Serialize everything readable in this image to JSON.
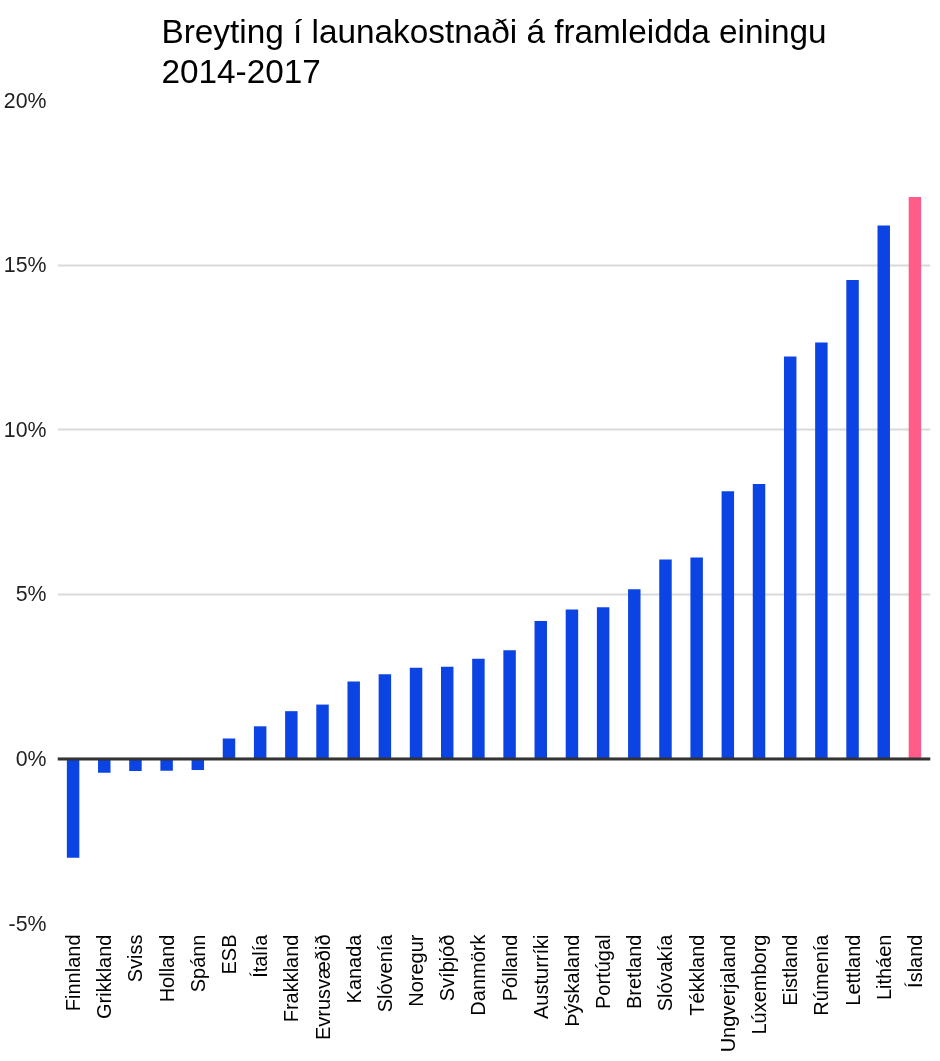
{
  "chart_data": {
    "type": "bar",
    "title": "Breyting í launakostnaði á framleidda einingu\n2014-2017",
    "categories": [
      "Finnland",
      "Grikkland",
      "Sviss",
      "Holland",
      "Spánn",
      "ESB",
      "Ítalía",
      "Frakkland",
      "Evrusvæðið",
      "Kanada",
      "Slóvenía",
      "Noregur",
      "Svíþjóð",
      "Danmörk",
      "Pólland",
      "Austurríki",
      "Þýskaland",
      "Portúgal",
      "Bretland",
      "Slóvakía",
      "Tékkland",
      "Ungverjaland",
      "Lúxemborg",
      "Eistland",
      "Rúmenía",
      "Lettland",
      "Litháen",
      "Ísland"
    ],
    "values": [
      -3.0,
      -0.42,
      -0.37,
      -0.36,
      -0.34,
      0.62,
      0.99,
      1.45,
      1.65,
      2.35,
      2.57,
      2.77,
      2.8,
      3.04,
      3.3,
      4.19,
      4.54,
      4.61,
      5.15,
      6.06,
      6.12,
      8.13,
      8.35,
      12.22,
      12.65,
      14.55,
      16.2,
      17.07
    ],
    "colors": [
      "#0b44e3",
      "#0b44e3",
      "#0b44e3",
      "#0b44e3",
      "#0b44e3",
      "#0b44e3",
      "#0b44e3",
      "#0b44e3",
      "#0b44e3",
      "#0b44e3",
      "#0b44e3",
      "#0b44e3",
      "#0b44e3",
      "#0b44e3",
      "#0b44e3",
      "#0b44e3",
      "#0b44e3",
      "#0b44e3",
      "#0b44e3",
      "#0b44e3",
      "#0b44e3",
      "#0b44e3",
      "#0b44e3",
      "#0b44e3",
      "#0b44e3",
      "#0b44e3",
      "#0b44e3",
      "#fe5c8b"
    ],
    "ylim": [
      -5,
      20
    ],
    "yticks": [
      {
        "value": -5,
        "label": "-5%"
      },
      {
        "value": 0,
        "label": "0%"
      },
      {
        "value": 5,
        "label": "5%"
      },
      {
        "value": 10,
        "label": "10%"
      },
      {
        "value": 15,
        "label": "15%"
      },
      {
        "value": 20,
        "label": "20%"
      }
    ],
    "grid": "y",
    "ref_lines": [
      {
        "axis": "y",
        "value": 0,
        "label": null,
        "color": "#333333"
      }
    ]
  }
}
